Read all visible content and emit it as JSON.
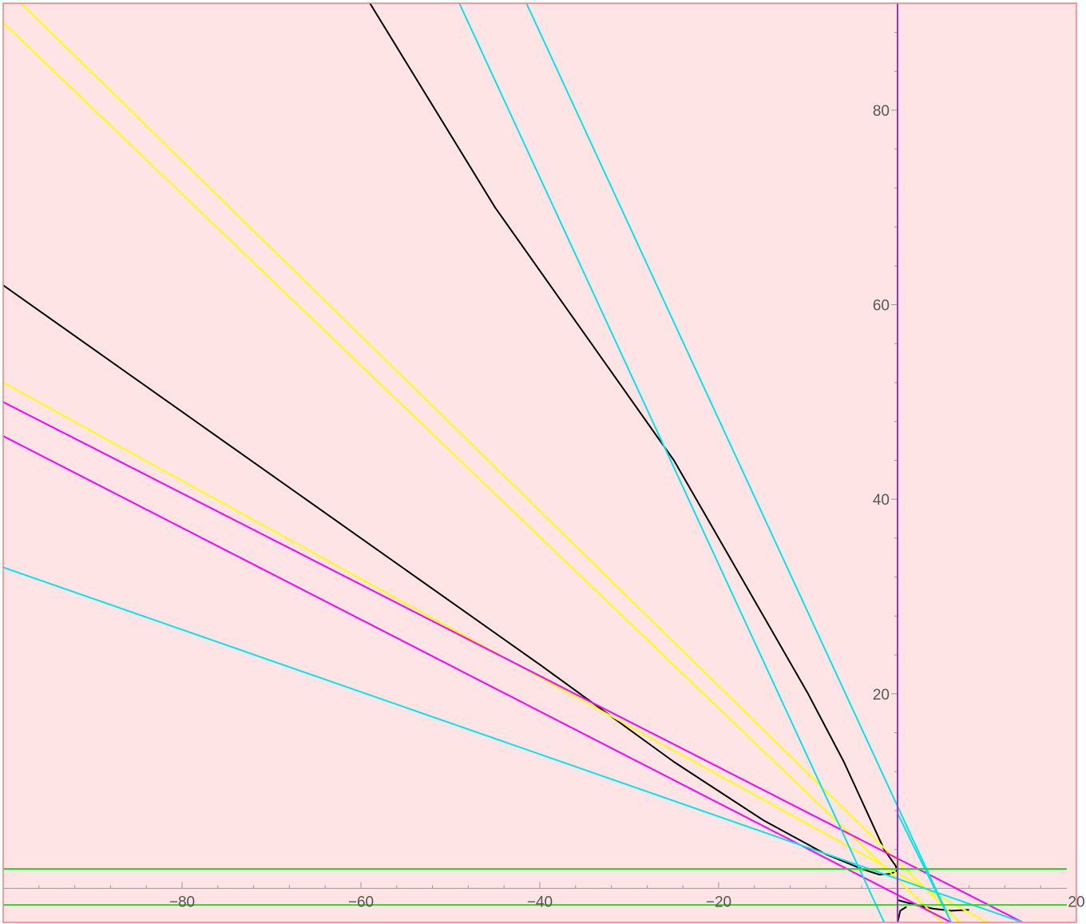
{
  "chart_data": {
    "type": "line",
    "title": "",
    "xlabel": "",
    "ylabel": "",
    "xlim": [
      -100,
      20
    ],
    "ylim": [
      -3.5,
      91
    ],
    "grid": false,
    "legend": "none",
    "background_color": "#ffe4e6",
    "frame_color": "#f08080",
    "axis_color": "#999999",
    "x_ticks": [
      {
        "value": -80,
        "label": "−80"
      },
      {
        "value": -60,
        "label": "−60"
      },
      {
        "value": -40,
        "label": "−40"
      },
      {
        "value": -20,
        "label": "−20"
      },
      {
        "value": 20,
        "label": "20"
      }
    ],
    "y_ticks": [
      {
        "value": 20,
        "label": "20"
      },
      {
        "value": 40,
        "label": "40"
      },
      {
        "value": 60,
        "label": "60"
      },
      {
        "value": 80,
        "label": "80"
      }
    ],
    "series": [
      {
        "color": "#000000",
        "style": "curve",
        "points": [
          [
            -59,
            91
          ],
          [
            -45,
            70
          ],
          [
            -35,
            57
          ],
          [
            -25,
            44
          ],
          [
            -15,
            28
          ],
          [
            -10,
            20
          ],
          [
            -6,
            13
          ],
          [
            -3,
            7
          ],
          [
            -1.5,
            4
          ],
          [
            -0.2,
            2.3
          ],
          [
            0,
            1.5
          ]
        ]
      },
      {
        "color": "#000000",
        "style": "curve",
        "points": [
          [
            -100,
            62
          ],
          [
            -80,
            49
          ],
          [
            -60,
            36
          ],
          [
            -40,
            23
          ],
          [
            -25,
            13
          ],
          [
            -15,
            7
          ],
          [
            -8,
            3.5
          ],
          [
            -4,
            2
          ],
          [
            -2,
            1.4
          ],
          [
            -0.8,
            1.5
          ],
          [
            0,
            1.8
          ]
        ]
      },
      {
        "color": "#000000",
        "style": "curve",
        "points": [
          [
            0,
            -1.2
          ],
          [
            2,
            -1.7
          ],
          [
            4,
            -2.1
          ],
          [
            6,
            -2.3
          ],
          [
            8,
            -2.2
          ]
        ]
      },
      {
        "color": "#000000",
        "style": "curve",
        "points": [
          [
            0,
            -3.5
          ],
          [
            0.3,
            -2.3
          ],
          [
            1,
            -1.9
          ]
        ]
      },
      {
        "color": "#ffff00",
        "style": "line",
        "points": [
          [
            -98,
            91
          ],
          [
            7,
            -3.5
          ]
        ]
      },
      {
        "color": "#ffff00",
        "style": "line",
        "points": [
          [
            -100,
            89
          ],
          [
            5,
            -3.5
          ]
        ]
      },
      {
        "color": "#ffff00",
        "style": "line",
        "points": [
          [
            -100,
            52
          ],
          [
            10,
            -3.5
          ]
        ]
      },
      {
        "color": "#ff00ff",
        "style": "line",
        "points": [
          [
            -100,
            50
          ],
          [
            14,
            -3.5
          ]
        ]
      },
      {
        "color": "#ff00ff",
        "style": "line",
        "points": [
          [
            -100,
            46.5
          ],
          [
            6,
            -3.5
          ]
        ]
      },
      {
        "color": "#00e5ee",
        "style": "line",
        "points": [
          [
            -49,
            91
          ],
          [
            -1.5,
            -3.5
          ]
        ]
      },
      {
        "color": "#00e5ee",
        "style": "line",
        "points": [
          [
            -41.5,
            91
          ],
          [
            6,
            -3.5
          ]
        ]
      },
      {
        "color": "#00e5ee",
        "style": "line",
        "points": [
          [
            -100,
            33
          ],
          [
            14,
            -3.5
          ]
        ]
      },
      {
        "color": "#00e5ee",
        "style": "line",
        "points": [
          [
            0,
            7.7
          ],
          [
            6,
            -3.5
          ]
        ]
      },
      {
        "color": "#22dd22",
        "style": "hline",
        "y": 2.0
      },
      {
        "color": "#22dd22",
        "style": "hline",
        "y": -1.7
      },
      {
        "color": "#9933cc",
        "style": "vline",
        "x": 0
      }
    ]
  }
}
